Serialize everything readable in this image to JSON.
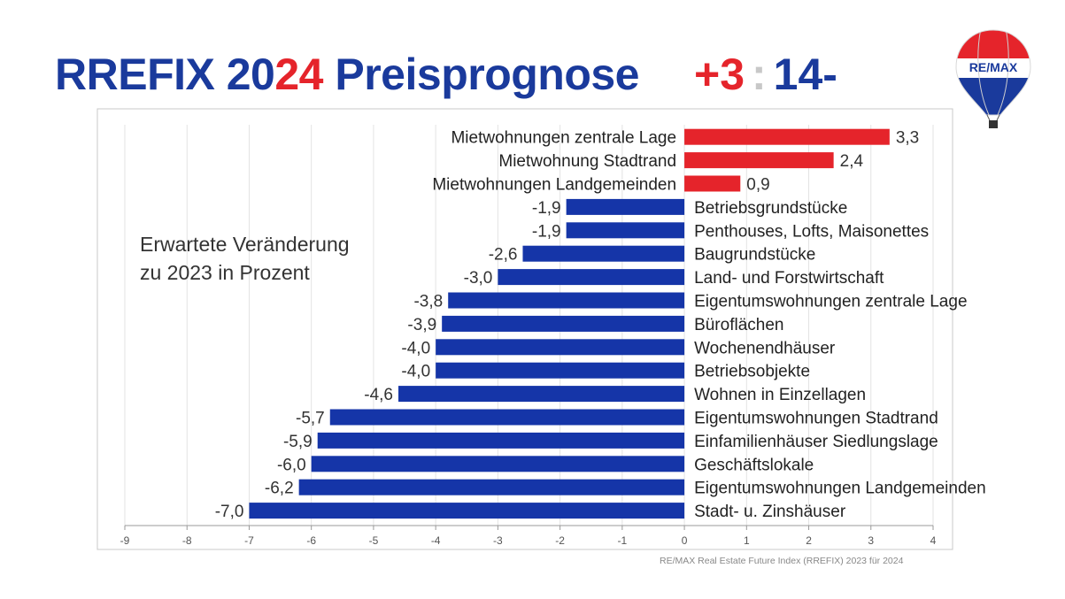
{
  "header": {
    "title_part1": "RREFIX 20",
    "title_year_red": "24",
    "title_part2": " Preisprognose",
    "score_positive": "+3",
    "score_colon": ":",
    "score_negative": "14-"
  },
  "logo": {
    "text": "RE/MAX",
    "icon": "hot-air-balloon-logo"
  },
  "annotation": {
    "line1": "Erwartete Veränderung",
    "line2": "zu 2023 in Prozent"
  },
  "source": "RE/MAX Real Estate Future Index (RREFIX) 2023 für 2024",
  "colors": {
    "positive": "#e5242b",
    "negative": "#1535a8",
    "title_blue": "#1a3a9c"
  },
  "chart_data": {
    "type": "bar",
    "orientation": "horizontal",
    "categories": [
      "Mietwohnungen zentrale Lage",
      "Mietwohnung Stadtrand",
      "Mietwohnungen Landgemeinden",
      "Betriebsgrundstücke",
      "Penthouses, Lofts, Maisonettes",
      "Baugrundstücke",
      "Land- und Forstwirtschaft",
      "Eigentumswohnungen zentrale Lage",
      "Büroflächen",
      "Wochenendhäuser",
      "Betriebsobjekte",
      "Wohnen in Einzellagen",
      "Eigentumswohnungen Stadtrand",
      "Einfamilienhäuser Siedlungslage",
      "Geschäftslokale",
      "Eigentumswohnungen Landgemeinden",
      "Stadt- u. Zinshäuser"
    ],
    "values": [
      3.3,
      2.4,
      0.9,
      -1.9,
      -1.9,
      -2.6,
      -3.0,
      -3.8,
      -3.9,
      -4.0,
      -4.0,
      -4.6,
      -5.7,
      -5.9,
      -6.0,
      -6.2,
      -7.0
    ],
    "value_labels": [
      "3,3",
      "2,4",
      "0,9",
      "-1,9",
      "-1,9",
      "-2,6",
      "-3,0",
      "-3,8",
      "-3,9",
      "-4,0",
      "-4,0",
      "-4,6",
      "-5,7",
      "-5,9",
      "-6,0",
      "-6,2",
      "-7,0"
    ],
    "xlim": [
      -9,
      4
    ],
    "x_ticks": [
      -9,
      -8,
      -7,
      -6,
      -5,
      -4,
      -3,
      -2,
      -1,
      0,
      1,
      2,
      3,
      4
    ],
    "grid": true,
    "title": "",
    "xlabel": "",
    "ylabel": ""
  }
}
